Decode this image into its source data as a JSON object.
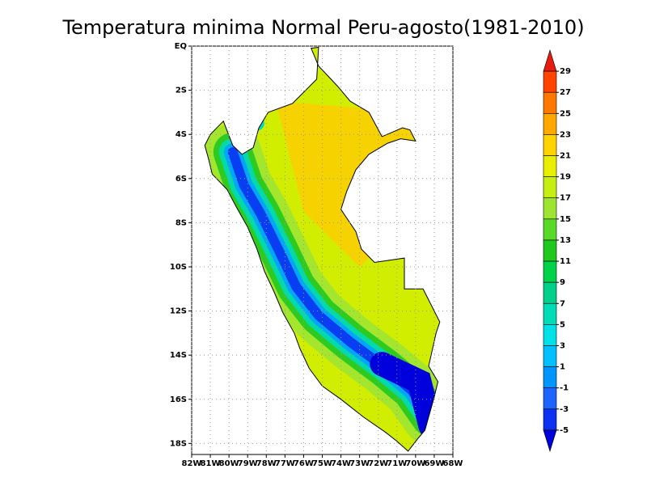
{
  "chart_data": {
    "type": "map",
    "title": "Temperatura minima Normal Peru-agosto(1981-2010)",
    "xlim": [
      -82,
      -68
    ],
    "ylim": [
      -18.5,
      0
    ],
    "xticks": [
      {
        "value": -82,
        "label": "82W"
      },
      {
        "value": -81,
        "label": "81W"
      },
      {
        "value": -80,
        "label": "80W"
      },
      {
        "value": -79,
        "label": "79W"
      },
      {
        "value": -78,
        "label": "78W"
      },
      {
        "value": -77,
        "label": "77W"
      },
      {
        "value": -76,
        "label": "76W"
      },
      {
        "value": -75,
        "label": "75W"
      },
      {
        "value": -74,
        "label": "74W"
      },
      {
        "value": -73,
        "label": "73W"
      },
      {
        "value": -72,
        "label": "72W"
      },
      {
        "value": -71,
        "label": "71W"
      },
      {
        "value": -70,
        "label": "70W"
      },
      {
        "value": -69,
        "label": "69W"
      },
      {
        "value": -68,
        "label": "68W"
      }
    ],
    "yticks": [
      {
        "value": 0,
        "label": "EQ"
      },
      {
        "value": -2,
        "label": "2S"
      },
      {
        "value": -4,
        "label": "4S"
      },
      {
        "value": -6,
        "label": "6S"
      },
      {
        "value": -8,
        "label": "8S"
      },
      {
        "value": -10,
        "label": "10S"
      },
      {
        "value": -12,
        "label": "12S"
      },
      {
        "value": -14,
        "label": "14S"
      },
      {
        "value": -16,
        "label": "16S"
      },
      {
        "value": -18,
        "label": "18S"
      }
    ],
    "grid": true,
    "colorbar": {
      "levels": [
        29,
        27,
        25,
        23,
        21,
        19,
        17,
        15,
        13,
        11,
        9,
        7,
        5,
        3,
        1,
        -1,
        -3,
        -5
      ],
      "colors": [
        "#e81c0e",
        "#ff4400",
        "#ff7800",
        "#ffa800",
        "#ffd200",
        "#e8ef00",
        "#c6ee10",
        "#9ee432",
        "#5ad828",
        "#20c81e",
        "#00d24a",
        "#00d08a",
        "#00dcb8",
        "#00e2e8",
        "#00c0ff",
        "#0096ff",
        "#1e64ff",
        "#0a32f0",
        "#0000dc"
      ]
    }
  }
}
